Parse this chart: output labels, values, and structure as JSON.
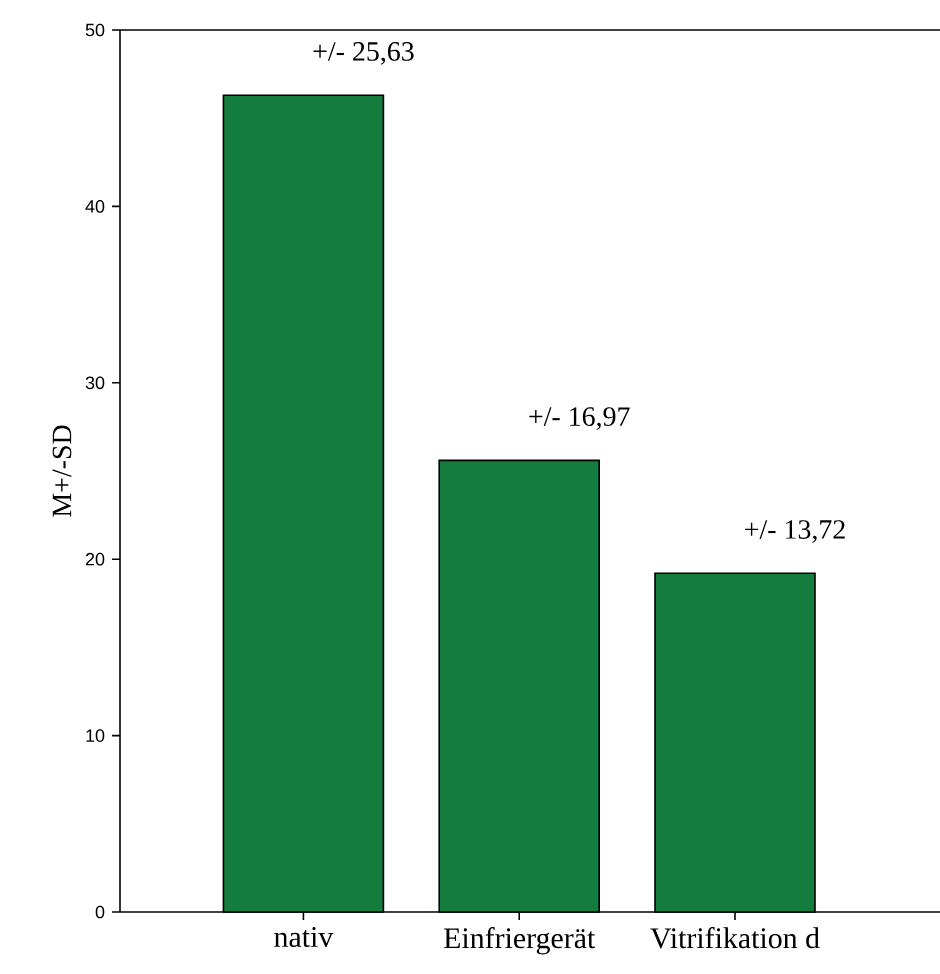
{
  "chart_data": {
    "type": "bar",
    "ylabel": "M+/-SD",
    "categories": [
      "nativ",
      "Einfriergerät",
      "Vitrifikation d"
    ],
    "values": [
      46.3,
      25.6,
      19.2
    ],
    "color": "#147c3c",
    "ylim": [
      0,
      50
    ],
    "yticks": [
      0,
      10,
      20,
      30,
      40,
      50
    ],
    "annotations": [
      {
        "text": "+/- 25,63",
        "x": "nativ",
        "y": 46.3
      },
      {
        "text": "+/- 16,97",
        "x": "Einfriergerät",
        "y": 25.6
      },
      {
        "text": "+/- 13,72",
        "x": "Vitrifikation d",
        "y": 19.2
      }
    ]
  }
}
